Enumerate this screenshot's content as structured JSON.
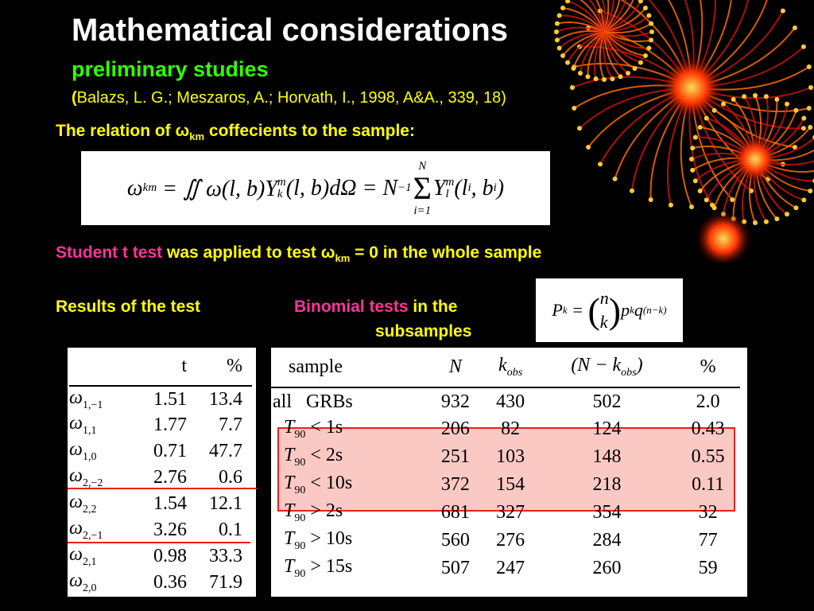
{
  "header": {
    "title": "Mathematical considerations",
    "subtitle": "preliminary studies",
    "citation_open": "(",
    "citation": "Balazs, L. G.; Meszaros, A.; Horvath, I., 1998, A&A., 339, 18)"
  },
  "relation_line": [
    "The relation of ",
    "ω",
    "km",
    " coffecients to the sample:"
  ],
  "formula_1": [
    "ω",
    "km",
    " = ∬ ω(l, b)Y",
    "k",
    "m",
    "(l, b)dΩ = N",
    "−1",
    "Σ",
    "N",
    "i=1",
    "Y",
    "l",
    "m",
    "(l",
    "i",
    ", b",
    "i",
    ")"
  ],
  "t_test_line": [
    "Student t test",
    " was applied to test ",
    "ω",
    "km",
    " = 0",
    " in the whole sample"
  ],
  "results_label": "Results of the test",
  "binomial_line": [
    "Binomial tests",
    " in the",
    "subsamples"
  ],
  "formula_2": [
    "P",
    "k",
    " = ",
    "n",
    "k",
    "p",
    "k",
    "q",
    "(n−k)"
  ],
  "table_t": {
    "header": [
      "t",
      "%"
    ],
    "rows": [
      {
        "symbol": "ω",
        "index": "1,−1",
        "t": "1.51",
        "pct": "13.4"
      },
      {
        "symbol": "ω",
        "index": "1,1",
        "t": "1.77",
        "pct": "7.7"
      },
      {
        "symbol": "ω",
        "index": "1,0",
        "t": "0.71",
        "pct": "47.7"
      },
      {
        "symbol": "ω",
        "index": "2,−2",
        "t": "2.76",
        "pct": "0.6"
      },
      {
        "symbol": "ω",
        "index": "2,2",
        "t": "1.54",
        "pct": "12.1"
      },
      {
        "symbol": "ω",
        "index": "2,−1",
        "t": "3.26",
        "pct": "0.1"
      },
      {
        "symbol": "ω",
        "index": "2,1",
        "t": "0.98",
        "pct": "33.3"
      },
      {
        "symbol": "ω",
        "index": "2,0",
        "t": "0.36",
        "pct": "71.9"
      }
    ]
  },
  "table_binomial": {
    "header": [
      "sample",
      "N",
      "k",
      "obs",
      "(N − k",
      "obs",
      ")",
      "%"
    ],
    "rows": [
      {
        "sample": "all   GRBs",
        "N": "932",
        "k": "430",
        "rest": "502",
        "pct": "2.0"
      },
      {
        "symbol": "T",
        "sub": "90",
        "cond": " < 1s",
        "N": "206",
        "k": "82",
        "rest": "124",
        "pct": "0.43"
      },
      {
        "symbol": "T",
        "sub": "90",
        "cond": " < 2s",
        "N": "251",
        "k": "103",
        "rest": "148",
        "pct": "0.55"
      },
      {
        "symbol": "T",
        "sub": "90",
        "cond": " < 10s",
        "N": "372",
        "k": "154",
        "rest": "218",
        "pct": "0.11"
      },
      {
        "symbol": "T",
        "sub": "90",
        "cond": " > 2s",
        "N": "681",
        "k": "327",
        "rest": "354",
        "pct": "32"
      },
      {
        "symbol": "T",
        "sub": "90",
        "cond": " > 10s",
        "N": "560",
        "k": "276",
        "rest": "284",
        "pct": "77"
      },
      {
        "symbol": "T",
        "sub": "90",
        "cond": " > 15s",
        "N": "507",
        "k": "247",
        "rest": "260",
        "pct": "59"
      }
    ]
  }
}
